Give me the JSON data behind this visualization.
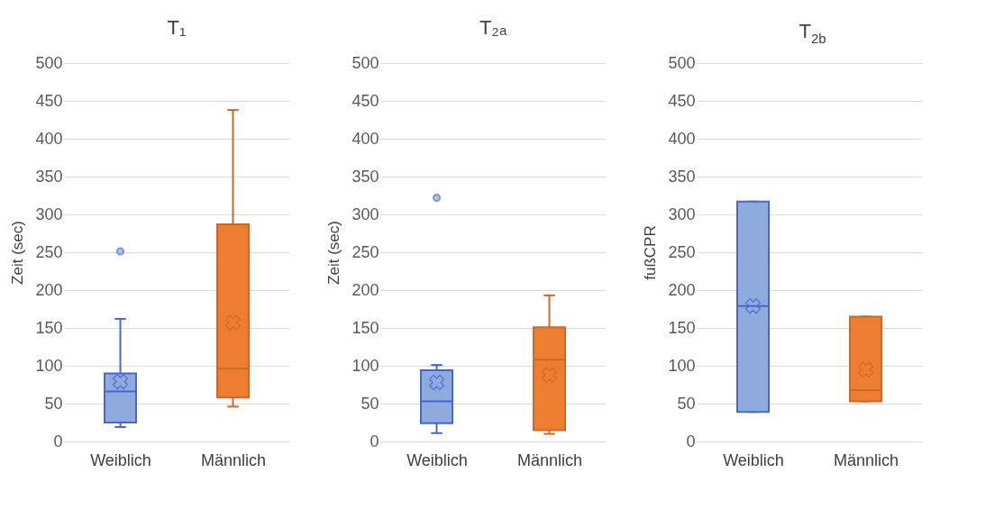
{
  "chart_data": [
    {
      "type": "box",
      "title": "T₁",
      "ylabel": "Zeit (sec)",
      "categories": [
        "Weiblich",
        "Männlich"
      ],
      "colors": [
        "#8faadc",
        "#ed7d31"
      ],
      "boxes": [
        {
          "low": 19,
          "q1": 25,
          "median": 66,
          "q3": 90,
          "high": 162,
          "mean": 79,
          "outliers": [
            251
          ]
        },
        {
          "low": 46,
          "q1": 58,
          "median": 96,
          "q3": 287,
          "high": 438,
          "mean": 157
        }
      ],
      "ylim": [
        0,
        500
      ],
      "yticks": [
        0,
        50,
        100,
        150,
        200,
        250,
        300,
        350,
        400,
        450,
        500
      ],
      "grid": "y"
    },
    {
      "type": "box",
      "title": "T₂ₐ",
      "ylabel": "Zeit (sec)",
      "categories": [
        "Weiblich",
        "Männlich"
      ],
      "colors": [
        "#8faadc",
        "#ed7d31"
      ],
      "boxes": [
        {
          "low": 11,
          "q1": 24,
          "median": 53,
          "q3": 94,
          "high": 101,
          "mean": 78,
          "outliers": [
            322
          ]
        },
        {
          "low": 10,
          "q1": 15,
          "median": 108,
          "q3": 151,
          "high": 193,
          "mean": 88
        }
      ],
      "ylim": [
        0,
        500
      ],
      "yticks": [
        0,
        50,
        100,
        150,
        200,
        250,
        300,
        350,
        400,
        450,
        500
      ],
      "grid": "y"
    },
    {
      "type": "box",
      "title": "T$_{2b}$",
      "ylabel": "fußCPR",
      "categories": [
        "Weiblich",
        "Männlich"
      ],
      "colors": [
        "#8faadc",
        "#ed7d31"
      ],
      "boxes": [
        {
          "low": 39,
          "q1": 39,
          "median": 179,
          "q3": 317,
          "high": 317,
          "mean": 179
        },
        {
          "low": 53,
          "q1": 53,
          "median": 68,
          "q3": 165,
          "high": 165,
          "mean": 95
        }
      ],
      "ylim": [
        0,
        500
      ],
      "yticks": [
        0,
        50,
        100,
        150,
        200,
        250,
        300,
        350,
        400,
        450,
        500
      ],
      "grid": "y"
    }
  ]
}
